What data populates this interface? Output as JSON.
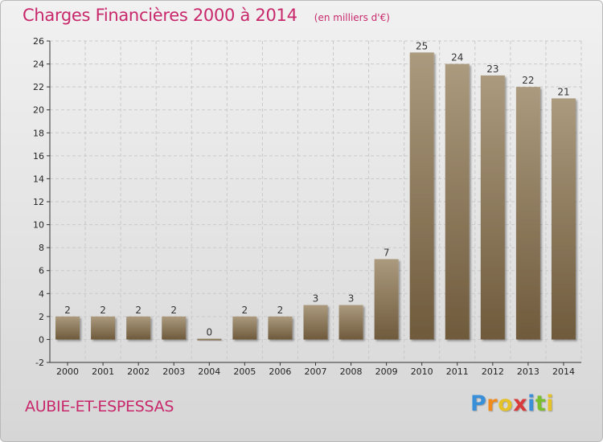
{
  "header": {
    "title": "Charges Financières 2000 à 2014",
    "unit": "(en milliers d'€)"
  },
  "footer": {
    "commune": "AUBIE-ET-ESPESSAS",
    "logo_letters": [
      "P",
      "r",
      "o",
      "x",
      "i",
      "t",
      "i"
    ],
    "logo_colors": [
      "#3a8fd9",
      "#f08a1c",
      "#e6c229",
      "#d93a3a",
      "#3a8fd9",
      "#7abf2f",
      "#e6c229"
    ]
  },
  "colors": {
    "accent": "#c8286b",
    "bar_light": "#ab9a7e",
    "bar_dark": "#6f5a3c",
    "axis": "#333333",
    "grid": "#c9c9c9"
  },
  "chart_data": {
    "type": "bar",
    "categories": [
      "2000",
      "2001",
      "2002",
      "2003",
      "2004",
      "2005",
      "2006",
      "2007",
      "2008",
      "2009",
      "2010",
      "2011",
      "2012",
      "2013",
      "2014"
    ],
    "values": [
      2,
      2,
      2,
      2,
      0,
      2,
      2,
      3,
      3,
      7,
      25,
      24,
      23,
      22,
      21
    ],
    "data_labels": [
      "2",
      "2",
      "2",
      "2",
      "0",
      "2",
      "2",
      "3",
      "3",
      "7",
      "25",
      "24",
      "23",
      "22",
      "21"
    ],
    "ylim": [
      -2,
      26
    ],
    "yticks": [
      -2,
      0,
      2,
      4,
      6,
      8,
      10,
      12,
      14,
      16,
      18,
      20,
      22,
      24,
      26
    ],
    "grid": true
  }
}
